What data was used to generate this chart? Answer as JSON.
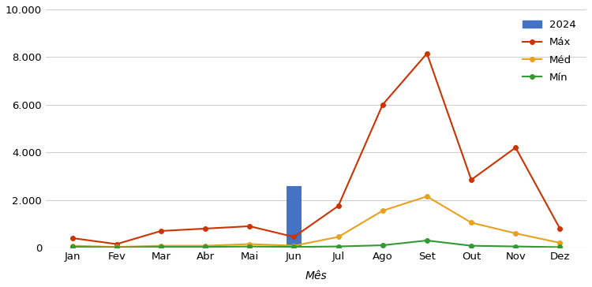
{
  "months": [
    "Jan",
    "Fev",
    "Mar",
    "Abr",
    "Mai",
    "Jun",
    "Jul",
    "Ago",
    "Set",
    "Out",
    "Nov",
    "Dez"
  ],
  "max_values": [
    400,
    150,
    700,
    800,
    900,
    450,
    1750,
    6000,
    8150,
    2850,
    4200,
    800
  ],
  "med_values": [
    80,
    30,
    80,
    80,
    150,
    80,
    450,
    1550,
    2150,
    1050,
    600,
    200
  ],
  "min_values": [
    30,
    10,
    30,
    30,
    50,
    30,
    50,
    100,
    300,
    80,
    50,
    20
  ],
  "bar_2024_jun": 2600,
  "bar_jun_index": 5,
  "bar_color": "#4472C4",
  "max_color": "#CC3300",
  "med_color": "#E8A020",
  "min_color": "#339933",
  "xlabel": "Mês",
  "ylim": [
    0,
    10000
  ],
  "yticks": [
    0,
    2000,
    4000,
    6000,
    8000,
    10000
  ],
  "ytick_labels": [
    "0",
    "2.000",
    "4.000",
    "6.000",
    "8.000",
    "10.000"
  ],
  "legend_labels": [
    "2024",
    "Máx",
    "Méd",
    "Mín"
  ],
  "background_color": "#ffffff",
  "grid_color": "#d0d0d0"
}
